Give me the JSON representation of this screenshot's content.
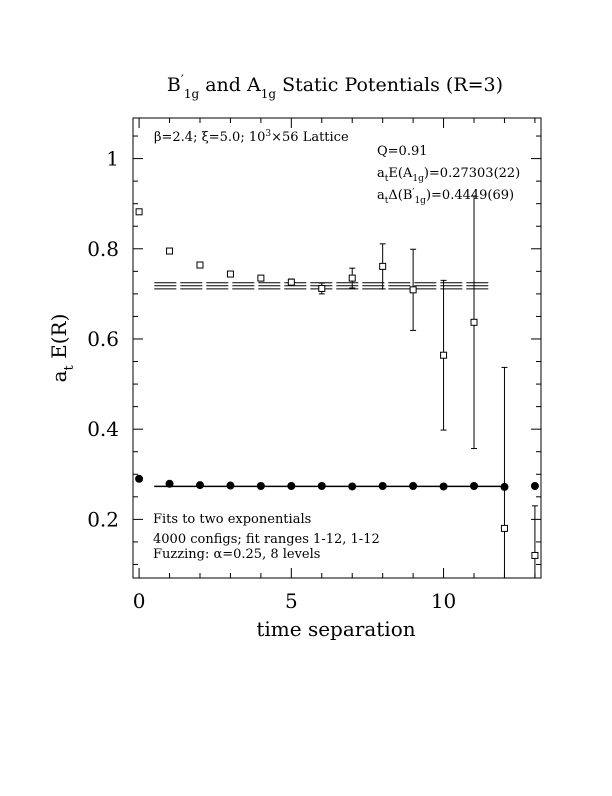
{
  "chart_data": {
    "type": "scatter",
    "title": {
      "main": "B",
      "prime": "′",
      "sub1": "1g",
      "mid": " and A",
      "sub2": "1g",
      "end": " Static Potentials (R=3)"
    },
    "xlabel": "time separation",
    "ylabel": {
      "main": "a",
      "sub": "t",
      "rest": " E(R)"
    },
    "xlim": [
      -0.2,
      13.2
    ],
    "ylim": [
      0.07,
      1.09
    ],
    "x_ticks": [
      0,
      5,
      10
    ],
    "y_ticks": [
      0.2,
      0.4,
      0.6,
      0.8,
      1.0
    ],
    "x_tick_labels": [
      "0",
      "5",
      "10"
    ],
    "y_tick_labels": [
      "0.2",
      "0.4",
      "0.6",
      "0.8",
      "1"
    ],
    "grid": false,
    "annotations": {
      "lattice": {
        "a": "β=2.4; ξ=5.0; 10",
        "sup": "3",
        "b": "×56 Lattice"
      },
      "q": "Q=0.91",
      "fitA": {
        "a": "a",
        "sub1": "t",
        "b": "E(A",
        "sub2": "1g",
        "c": ")=0.27303(22)"
      },
      "fitB": {
        "a": "a",
        "sub1": "t",
        "b": "Δ(B",
        "prime": "′",
        "sub2": "1g",
        "c": ")=0.4449(69)"
      },
      "fits": "Fits to two exponentials",
      "configs": "4000 configs; fit ranges 1-12, 1-12",
      "fuzzing": "Fuzzing: α=0.25, 8 levels"
    },
    "series": [
      {
        "marker": "open-square",
        "points": [
          {
            "x": 0,
            "y": 0.882,
            "err": 0.004
          },
          {
            "x": 1,
            "y": 0.795,
            "err": 0.004
          },
          {
            "x": 2,
            "y": 0.764,
            "err": 0.004
          },
          {
            "x": 3,
            "y": 0.744,
            "err": 0.004
          },
          {
            "x": 4,
            "y": 0.735,
            "err": 0.005
          },
          {
            "x": 5,
            "y": 0.726,
            "err": 0.007
          },
          {
            "x": 6,
            "y": 0.712,
            "err": 0.012
          },
          {
            "x": 7,
            "y": 0.735,
            "err": 0.022
          },
          {
            "x": 8,
            "y": 0.761,
            "err": 0.05
          },
          {
            "x": 9,
            "y": 0.709,
            "err": 0.09
          },
          {
            "x": 10,
            "y": 0.564,
            "err": 0.166
          },
          {
            "x": 11,
            "y": 0.637,
            "err": 0.28
          },
          {
            "x": 12,
            "y": 0.18,
            "err": 0.357
          },
          {
            "x": 13,
            "y": 0.12,
            "err": 0.11
          }
        ]
      },
      {
        "marker": "filled-circle",
        "points": [
          {
            "x": 0,
            "y": 0.29,
            "err": 0.003
          },
          {
            "x": 1,
            "y": 0.279,
            "err": 0.002
          },
          {
            "x": 2,
            "y": 0.276,
            "err": 0.002
          },
          {
            "x": 3,
            "y": 0.275,
            "err": 0.002
          },
          {
            "x": 4,
            "y": 0.274,
            "err": 0.002
          },
          {
            "x": 5,
            "y": 0.274,
            "err": 0.002
          },
          {
            "x": 6,
            "y": 0.274,
            "err": 0.002
          },
          {
            "x": 7,
            "y": 0.273,
            "err": 0.002
          },
          {
            "x": 8,
            "y": 0.274,
            "err": 0.002
          },
          {
            "x": 9,
            "y": 0.274,
            "err": 0.002
          },
          {
            "x": 10,
            "y": 0.273,
            "err": 0.003
          },
          {
            "x": 11,
            "y": 0.274,
            "err": 0.003
          },
          {
            "x": 12,
            "y": 0.272,
            "err": 0.003
          },
          {
            "x": 13,
            "y": 0.274,
            "err": 0.004
          }
        ]
      }
    ],
    "fit_bands": [
      {
        "x_range": [
          0.5,
          11.5
        ],
        "center": 0.7179,
        "half_width": 0.0069,
        "style": "dashed"
      },
      {
        "x_range": [
          0.5,
          12.0
        ],
        "center": 0.27303,
        "half_width": 0.00022,
        "style": "solid"
      }
    ]
  }
}
